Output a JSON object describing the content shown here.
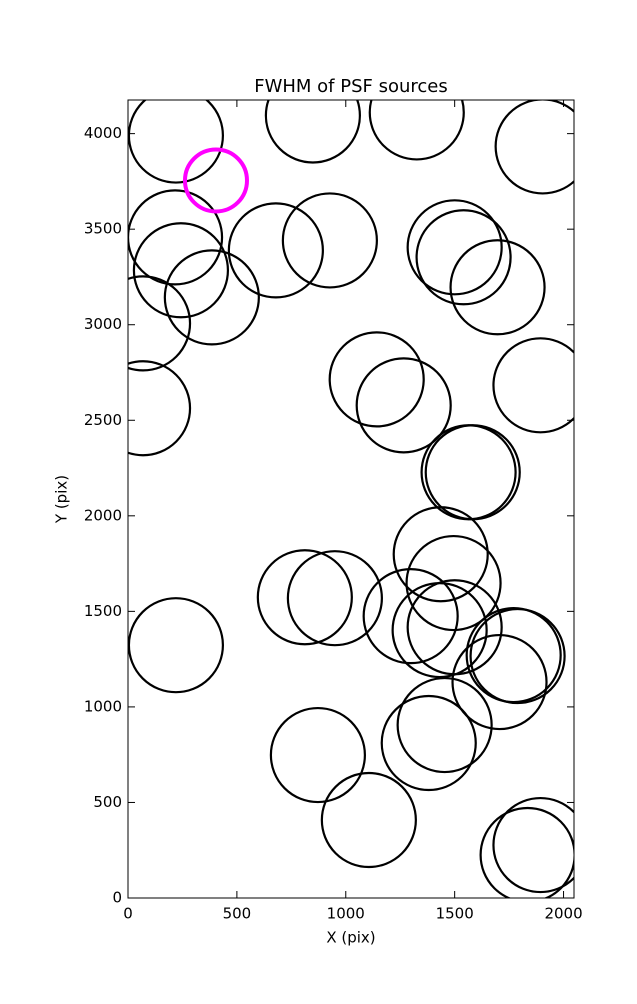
{
  "chart_data": {
    "type": "scatter",
    "title": "FWHM of PSF sources",
    "x_label": "X (pix)",
    "y_label": "Y (pix)",
    "xlim": [
      0,
      2048
    ],
    "ylim": [
      0,
      4176
    ],
    "xticks": [
      0,
      500,
      1000,
      1500,
      2000
    ],
    "yticks": [
      0,
      500,
      1000,
      1500,
      2000,
      2500,
      3000,
      3500,
      4000
    ],
    "series": [
      {
        "color": "#000000",
        "x": [
          220,
          849,
          1326,
          1904,
          216,
          243,
          385,
          679,
          927,
          1500,
          1541,
          1697,
          69,
          69,
          1142,
          1266,
          1894,
          1564,
          1583,
          1436,
          1495,
          812,
          950,
          1298,
          1431,
          1500,
          220,
          1771,
          1789,
          1706,
          1454,
          1381,
          872,
          1106,
          1894,
          1835
        ],
        "values": [
          3990,
          4095,
          4111,
          3933,
          3457,
          3285,
          3143,
          3389,
          3441,
          3405,
          3353,
          3196,
          3007,
          2563,
          2714,
          2578,
          2683,
          2228,
          2228,
          1799,
          1648,
          1574,
          1569,
          1475,
          1402,
          1417,
          1323,
          1271,
          1266,
          1130,
          905,
          811,
          748,
          408,
          277,
          225
        ]
      },
      {
        "color": "#ff00ff",
        "x": [
          404
        ],
        "values": [
          3755
        ]
      }
    ]
  }
}
